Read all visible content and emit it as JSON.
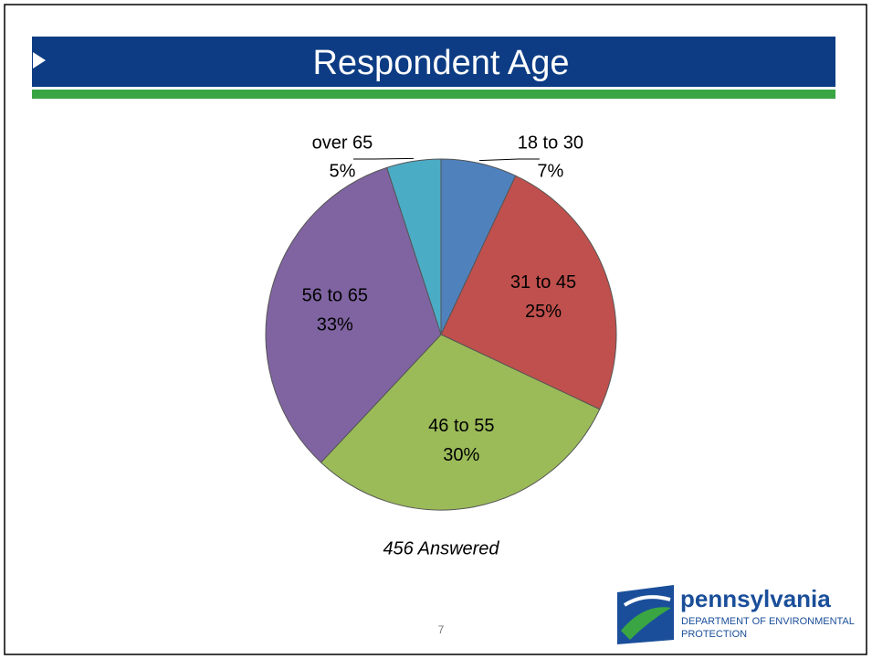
{
  "chart_data": {
    "type": "pie",
    "title": "Respondent Age",
    "categories": [
      "18 to 30",
      "31 to 45",
      "46 to 55",
      "56 to 65",
      "over 65"
    ],
    "values": [
      7,
      25,
      30,
      33,
      5
    ],
    "value_labels": [
      "7%",
      "25%",
      "30%",
      "33%",
      "5%"
    ],
    "colors": [
      "#4f81bd",
      "#c0504d",
      "#9bbb59",
      "#8064a2",
      "#4bacc6"
    ],
    "annotation": "456 Answered"
  },
  "footer": {
    "page_number": "7",
    "logo": {
      "name": "pennsylvania",
      "line1": "DEPARTMENT OF ENVIRONMENTAL",
      "line2": "PROTECTION"
    }
  }
}
